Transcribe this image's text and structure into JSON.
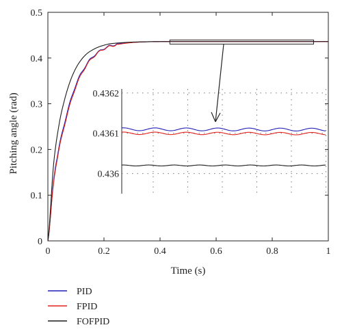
{
  "chart_data": {
    "type": "line",
    "xlabel": "Time (s)",
    "ylabel": "Pitching angle (rad)",
    "xlim": [
      0,
      1
    ],
    "ylim": [
      0,
      0.5
    ],
    "x_ticks": [
      "0",
      "0.2",
      "0.4",
      "0.6",
      "0.8",
      "1"
    ],
    "y_ticks": [
      "0",
      "0.1",
      "0.2",
      "0.3",
      "0.4",
      "0.5"
    ],
    "grid": false,
    "legend_position": "bottom-left, below axes",
    "series": [
      {
        "name": "PID",
        "color": "#1f1fb4",
        "x": [
          0,
          0.02,
          0.04,
          0.06,
          0.08,
          0.1,
          0.12,
          0.14,
          0.16,
          0.18,
          0.2,
          0.22,
          0.25,
          0.3,
          0.35,
          0.4,
          0.45,
          0.5,
          0.6,
          0.8,
          1.0
        ],
        "y": [
          0,
          0.13,
          0.205,
          0.26,
          0.305,
          0.342,
          0.368,
          0.388,
          0.403,
          0.413,
          0.421,
          0.426,
          0.431,
          0.434,
          0.4355,
          0.436,
          0.4361,
          0.4361,
          0.4361,
          0.4361,
          0.4361
        ]
      },
      {
        "name": "FPID",
        "color": "#e0201a",
        "x": [
          0,
          0.02,
          0.04,
          0.06,
          0.08,
          0.1,
          0.12,
          0.14,
          0.16,
          0.18,
          0.2,
          0.22,
          0.25,
          0.3,
          0.35,
          0.4,
          0.45,
          0.5,
          0.6,
          0.8,
          1.0
        ],
        "y": [
          0,
          0.125,
          0.2,
          0.255,
          0.3,
          0.338,
          0.365,
          0.386,
          0.401,
          0.412,
          0.42,
          0.425,
          0.43,
          0.4338,
          0.4354,
          0.436,
          0.4361,
          0.4361,
          0.4361,
          0.4361,
          0.4361
        ]
      },
      {
        "name": "FOFPID",
        "color": "#1a1a1a",
        "x": [
          0,
          0.02,
          0.04,
          0.06,
          0.08,
          0.1,
          0.12,
          0.14,
          0.16,
          0.18,
          0.2,
          0.22,
          0.25,
          0.3,
          0.35,
          0.4,
          0.45,
          0.5,
          0.6,
          0.8,
          1.0
        ],
        "y": [
          0,
          0.165,
          0.255,
          0.31,
          0.35,
          0.378,
          0.397,
          0.41,
          0.418,
          0.424,
          0.428,
          0.431,
          0.433,
          0.4348,
          0.4356,
          0.436,
          0.436,
          0.436,
          0.436,
          0.436,
          0.436
        ]
      }
    ],
    "inset": {
      "zoom_x": [
        0.43,
        0.95
      ],
      "zoom_y": [
        0.4359,
        0.4362
      ],
      "ylim": [
        0.43595,
        0.43621
      ],
      "y_ticks": [
        "0.436",
        "0.4361",
        "0.4362"
      ],
      "y_tick_values": [
        0.436,
        0.4361,
        0.4362
      ],
      "grid": true,
      "series": [
        {
          "name": "PID",
          "color": "#1f1fb4",
          "base": 0.43611,
          "amp": 3.5e-06,
          "cycles": 6.5,
          "drift": -1e-06
        },
        {
          "name": "FPID",
          "color": "#e0201a",
          "base": 0.4361,
          "amp": 3e-06,
          "cycles": 6.5,
          "drift": -1e-06
        },
        {
          "name": "FOFPID",
          "color": "#1a1a1a",
          "base": 0.43602,
          "amp": 1.2e-06,
          "cycles": 8.0,
          "drift": 0.0
        }
      ]
    }
  },
  "legend": {
    "items": [
      {
        "label": "PID",
        "color": "#1f1fb4"
      },
      {
        "label": "FPID",
        "color": "#e0201a"
      },
      {
        "label": "FOFPID",
        "color": "#1a1a1a"
      }
    ]
  }
}
